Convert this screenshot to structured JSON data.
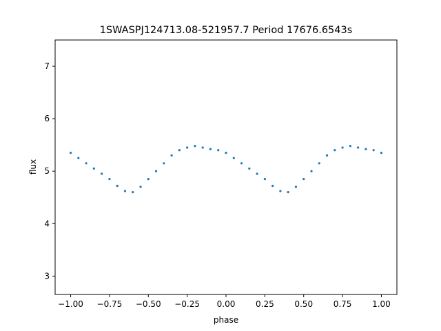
{
  "chart_data": {
    "type": "scatter",
    "title": "1SWASPJ124713.08-521957.7 Period 17676.6543s",
    "xlabel": "phase",
    "ylabel": "flux",
    "xlim": [
      -1.1,
      1.1
    ],
    "ylim": [
      2.65,
      7.5
    ],
    "xticks": [
      -1.0,
      -0.75,
      -0.5,
      -0.25,
      0.0,
      0.25,
      0.5,
      0.75,
      1.0
    ],
    "xtick_labels": [
      "−1.00",
      "−0.75",
      "−0.50",
      "−0.25",
      "0.00",
      "0.25",
      "0.50",
      "0.75",
      "1.00"
    ],
    "yticks": [
      3,
      4,
      5,
      6,
      7
    ],
    "ytick_labels": [
      "3",
      "4",
      "5",
      "6",
      "7"
    ],
    "grid": false,
    "point_color": "#1f77b4",
    "series": [
      {
        "x": [
          -1.0,
          -0.95,
          -0.9,
          -0.85,
          -0.8,
          -0.75,
          -0.7,
          -0.65,
          -0.6,
          -0.55,
          -0.5,
          -0.45,
          -0.4,
          -0.35,
          -0.3,
          -0.25,
          -0.2,
          -0.15,
          -0.1,
          -0.05,
          0.0,
          0.05,
          0.1,
          0.15,
          0.2,
          0.25,
          0.3,
          0.35,
          0.4,
          0.45,
          0.5,
          0.55,
          0.6,
          0.65,
          0.7,
          0.75,
          0.8,
          0.85,
          0.9,
          0.95,
          1.0
        ],
        "y": [
          5.35,
          5.25,
          5.15,
          5.05,
          4.95,
          4.85,
          4.72,
          4.62,
          4.6,
          4.7,
          4.85,
          5.0,
          5.15,
          5.3,
          5.4,
          5.45,
          5.48,
          5.45,
          5.42,
          5.4,
          5.35,
          5.25,
          5.15,
          5.05,
          4.95,
          4.85,
          4.72,
          4.62,
          4.6,
          4.7,
          4.85,
          5.0,
          5.15,
          5.3,
          5.4,
          5.45,
          5.48,
          5.45,
          5.42,
          5.4,
          5.35
        ]
      }
    ]
  }
}
